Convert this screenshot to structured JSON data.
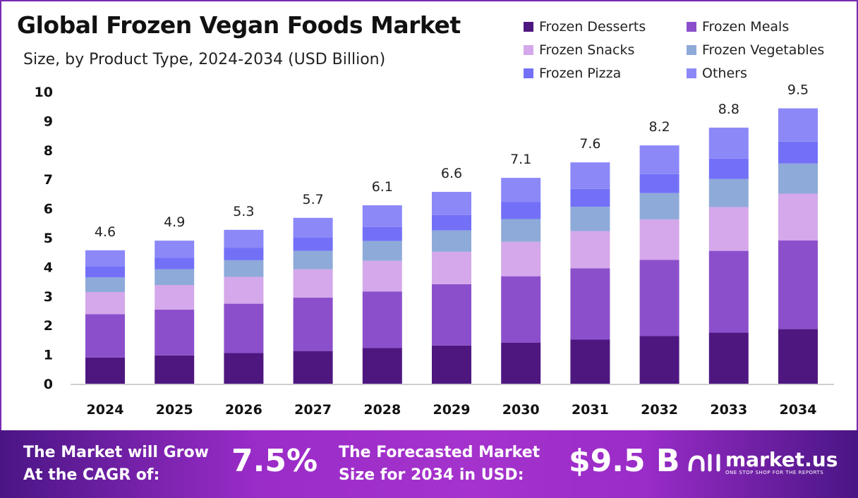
{
  "chart_data": {
    "type": "bar",
    "stacked": true,
    "title": "Global Frozen Vegan Foods Market",
    "subtitle": "Size, by Product Type, 2024-2034 (USD Billion)",
    "xlabel": "",
    "ylabel": "",
    "ylim": [
      0,
      10
    ],
    "yticks": [
      "0",
      "1",
      "2",
      "3",
      "4",
      "5",
      "6",
      "7",
      "8",
      "9",
      "10"
    ],
    "grid": false,
    "legend_position": "top-right",
    "categories": [
      "2024",
      "2025",
      "2026",
      "2027",
      "2028",
      "2029",
      "2030",
      "2031",
      "2032",
      "2033",
      "2034"
    ],
    "totals": [
      "4.6",
      "4.9",
      "5.3",
      "5.7",
      "6.1",
      "6.6",
      "7.1",
      "7.6",
      "8.2",
      "8.8",
      "9.5"
    ],
    "series": [
      {
        "name": "Frozen Desserts",
        "color": "#4e1780",
        "values": [
          0.9,
          0.97,
          1.05,
          1.12,
          1.22,
          1.31,
          1.41,
          1.51,
          1.63,
          1.75,
          1.87
        ]
      },
      {
        "name": "Frozen Meals",
        "color": "#8c4fcc",
        "values": [
          1.48,
          1.57,
          1.69,
          1.83,
          1.94,
          2.1,
          2.27,
          2.44,
          2.61,
          2.8,
          3.04
        ]
      },
      {
        "name": "Frozen Snacks",
        "color": "#d4a8ea",
        "values": [
          0.76,
          0.84,
          0.92,
          0.97,
          1.05,
          1.11,
          1.18,
          1.28,
          1.39,
          1.5,
          1.6
        ]
      },
      {
        "name": "Frozen Vegetables",
        "color": "#8eaad9",
        "values": [
          0.5,
          0.54,
          0.57,
          0.63,
          0.68,
          0.73,
          0.78,
          0.83,
          0.9,
          0.96,
          1.03
        ]
      },
      {
        "name": "Frozen Pizza",
        "color": "#7370f7",
        "values": [
          0.38,
          0.4,
          0.42,
          0.46,
          0.48,
          0.53,
          0.58,
          0.61,
          0.65,
          0.7,
          0.75
        ]
      },
      {
        "name": "Others",
        "color": "#8c88f8",
        "values": [
          0.55,
          0.58,
          0.62,
          0.67,
          0.74,
          0.79,
          0.83,
          0.91,
          0.98,
          1.06,
          1.14
        ]
      }
    ]
  },
  "footer": {
    "cagr_label_1": "The Market will Grow",
    "cagr_label_2": "At the CAGR of:",
    "cagr_value": "7.5%",
    "forecast_label_1": "The Forecasted Market",
    "forecast_label_2": "Size for 2034 in USD:",
    "forecast_value": "$9.5 B",
    "logo_name": "market.us",
    "logo_tagline": "ONE STOP SHOP FOR THE REPORTS"
  }
}
